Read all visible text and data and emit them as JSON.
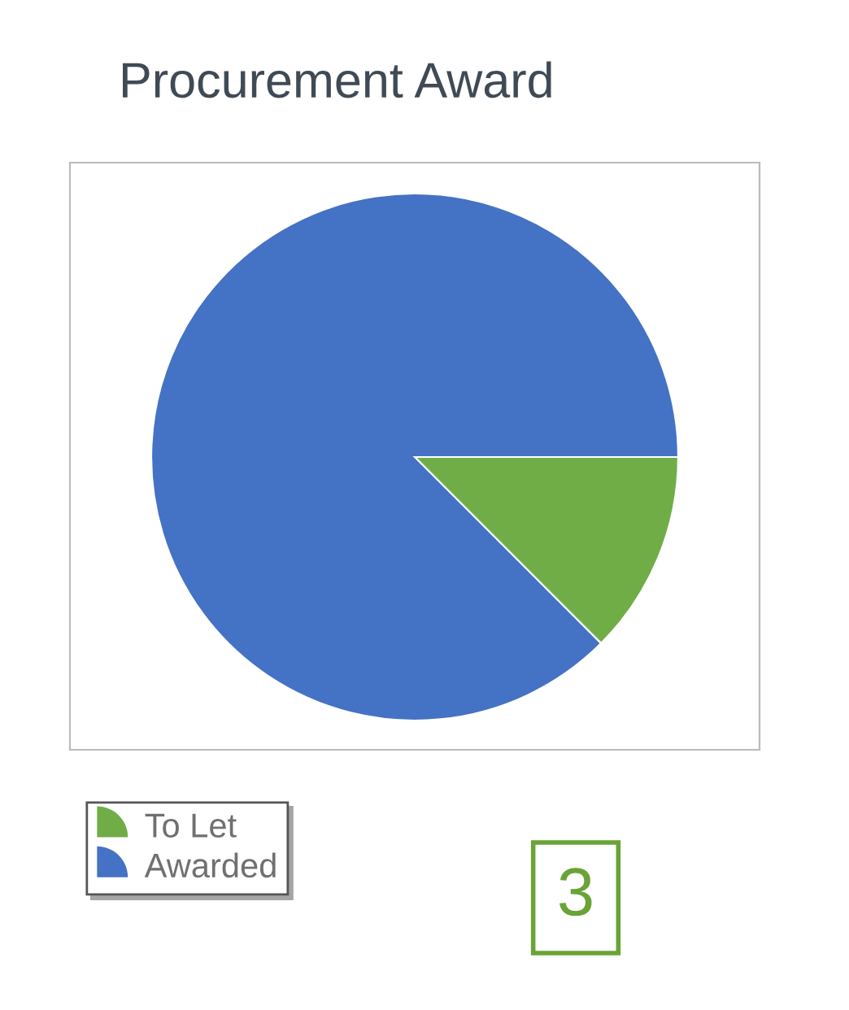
{
  "chart_data": {
    "type": "pie",
    "title": "Procurement Award",
    "categories": [
      "To Let",
      "Awarded"
    ],
    "values": [
      12.5,
      87.5
    ],
    "colors": [
      "#70ad47",
      "#4472c4"
    ],
    "legend": "bottom left",
    "annotations": [
      "3"
    ]
  }
}
